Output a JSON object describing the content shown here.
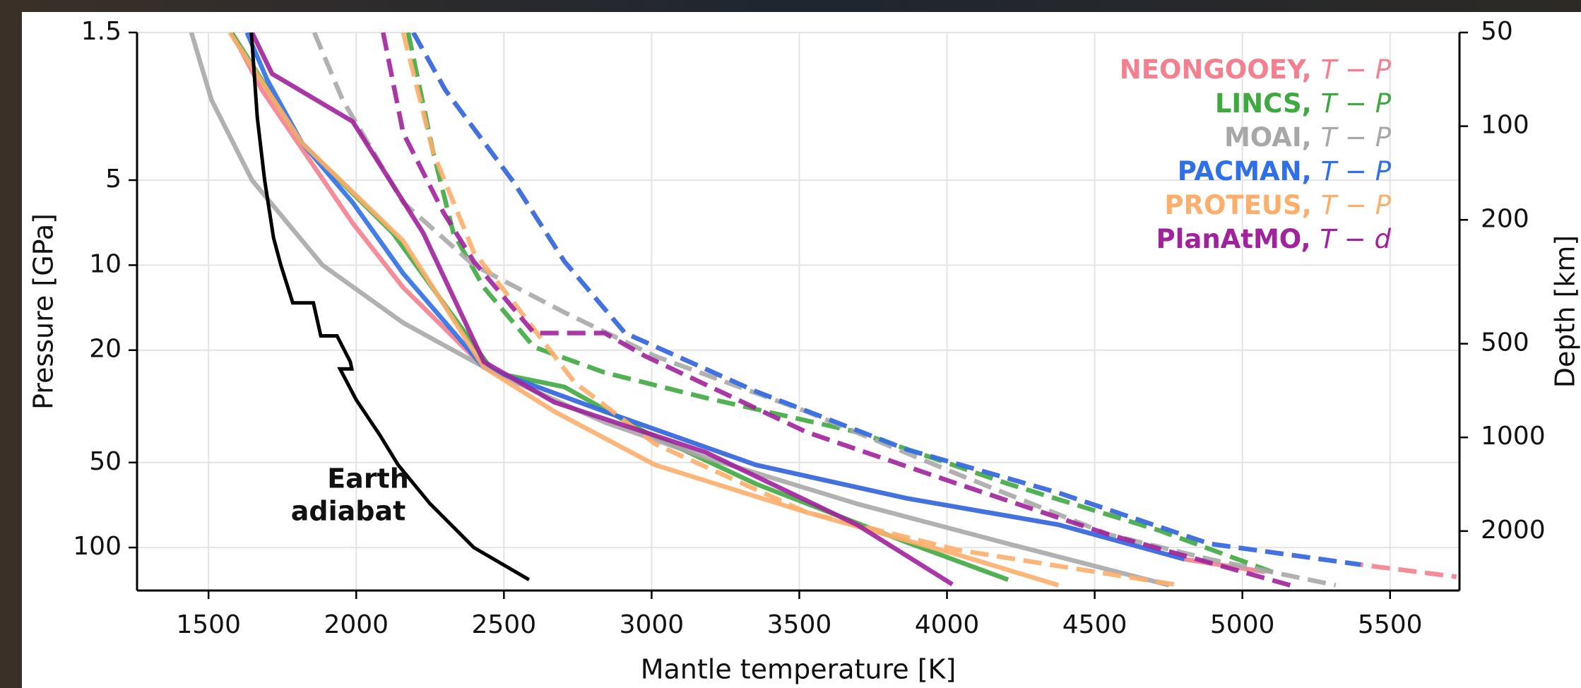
{
  "chart_data": {
    "type": "line",
    "xlabel": "Mantle temperature [K]",
    "ylabel": "Pressure [GPa]",
    "y2label": "Depth [km]",
    "xlim": [
      1258,
      5735
    ],
    "xticks": [
      1500,
      2000,
      2500,
      3000,
      3500,
      4000,
      4500,
      5000,
      5500
    ],
    "ylim": [
      142,
      1.5
    ],
    "yticks": [
      1.5,
      5,
      10,
      20,
      50,
      100
    ],
    "ylog": true,
    "y2lim": [
      3105,
      50
    ],
    "y2ticks": [
      50,
      100,
      200,
      500,
      1000,
      2000
    ],
    "y2log": true,
    "grid": true,
    "legend": "upper right",
    "series": [
      {
        "name": "NEONGOOEY, T − P",
        "color": "#f4808f",
        "lines": [
          {
            "style": "solid",
            "x": [
              1578,
              1681,
              1988,
              2159,
              2432,
              2841,
              3353,
              3865,
              4377,
              4804,
              5077
            ],
            "y": [
              1.5,
              2.4,
              7.1,
              12,
              23,
              33,
              51,
              67,
              83,
              110,
              122
            ]
          },
          {
            "style": "dashed",
            "x": [
              2193,
              2302,
              2534,
              2705,
              2910,
              3353,
              3865,
              4377,
              4889,
              5401,
              5725
            ],
            "y": [
              1.5,
              2.4,
              5.1,
              9.7,
              17.4,
              28,
              45,
              64,
              97,
              115,
              127
            ]
          }
        ]
      },
      {
        "name": "LINCS, T − P",
        "color": "#3fa83f",
        "lines": [
          {
            "style": "solid",
            "x": [
              1578,
              1817,
              2124,
              2466,
              2705,
              2978,
              3353,
              3865,
              4207
            ],
            "y": [
              1.5,
              3.7,
              7.7,
              24,
              27,
              39,
              59.5,
              96,
              130
            ]
          },
          {
            "style": "dashed",
            "x": [
              2176,
              2261,
              2329,
              2432,
              2602,
              2841,
              3183,
              3695,
              4207,
              4718,
              5128
            ],
            "y": [
              1.5,
              4,
              7.7,
              12,
              19.5,
              24,
              29.5,
              39,
              59.5,
              87,
              125
            ]
          }
        ]
      },
      {
        "name": "MOAI, T − P",
        "color": "#a8a8a8",
        "lines": [
          {
            "style": "solid",
            "x": [
              1442,
              1510,
              1647,
              1886,
              2159,
              2466,
              2841,
              3183,
              3695,
              4207,
              4752
            ],
            "y": [
              1.5,
              2.6,
              5,
              10,
              16,
              24,
              36,
              48,
              70,
              97,
              136
            ]
          },
          {
            "style": "dashed",
            "x": [
              1858,
              1954,
              2159,
              2398,
              2705,
              3012,
              3524,
              4036,
              4548,
              4889,
              5316
            ],
            "y": [
              1.5,
              2.6,
              6,
              10,
              14.7,
              21,
              33,
              55,
              90,
              110,
              136
            ]
          }
        ]
      },
      {
        "name": "PACMAN, T − P",
        "color": "#2f6fe8",
        "lines": [
          {
            "style": "solid",
            "x": [
              1630,
              1698,
              1817,
              1988,
              2159,
              2432,
              2841,
              3353,
              3865,
              4377,
              4804
            ],
            "y": [
              1.5,
              2.2,
              3.7,
              6,
              10.7,
              23,
              33,
              51,
              67,
              83,
              110
            ]
          },
          {
            "style": "dashed",
            "x": [
              2193,
              2302,
              2534,
              2705,
              2910,
              3353,
              3865,
              4377,
              4889,
              5401
            ],
            "y": [
              1.5,
              2.4,
              5.1,
              9.7,
              17.4,
              28,
              45,
              64,
              97,
              115
            ]
          }
        ]
      },
      {
        "name": "PROTEUS, T − P",
        "color": "#fdae6b",
        "lines": [
          {
            "style": "solid",
            "x": [
              1572,
              1817,
              2159,
              2432,
              2671,
              3012,
              3524,
              4036,
              4377
            ],
            "y": [
              1.5,
              3.7,
              8.2,
              23,
              33,
              51,
              75,
              106,
              136
            ]
          },
          {
            "style": "dashed",
            "x": [
              2159,
              2261,
              2398,
              2534,
              2739,
              3012,
              3524,
              4036,
              4787
            ],
            "y": [
              1.5,
              4,
              9,
              13.6,
              26,
              43,
              75,
              102,
              136
            ]
          }
        ]
      },
      {
        "name": "PlanAtMO, T − d",
        "color": "#a0229c",
        "lines": [
          {
            "style": "solid",
            "x": [
              1647,
              1715,
              1988,
              2227,
              2432,
              2671,
              3183,
              3695,
              4018
            ],
            "y": [
              1.5,
              2.1,
              3.1,
              7.7,
              22,
              30.6,
              46,
              83,
              135
            ]
          },
          {
            "style": "dashed",
            "x": [
              2091,
              2159,
              2295,
              2398,
              2602,
              2841,
              2978,
              3524,
              4036,
              4548,
              5162
            ],
            "y": [
              1.5,
              3.4,
              6.5,
              9.7,
              17.4,
              17.4,
              21,
              39,
              59.5,
              90,
              136
            ]
          }
        ]
      }
    ],
    "reference": {
      "color": "#000000",
      "annotation": [
        "Earth",
        "adiabat"
      ],
      "x": [
        1645,
        1665,
        1690,
        1720,
        1745,
        1785,
        1855,
        1880,
        1935,
        1980,
        1985,
        1945,
        2000,
        2080,
        2142,
        2250,
        2398,
        2585
      ],
      "y": [
        1.5,
        3,
        5,
        8,
        10,
        13.6,
        13.6,
        17.8,
        17.8,
        22,
        23.3,
        23.3,
        30,
        40,
        51,
        70,
        100,
        130
      ]
    }
  }
}
